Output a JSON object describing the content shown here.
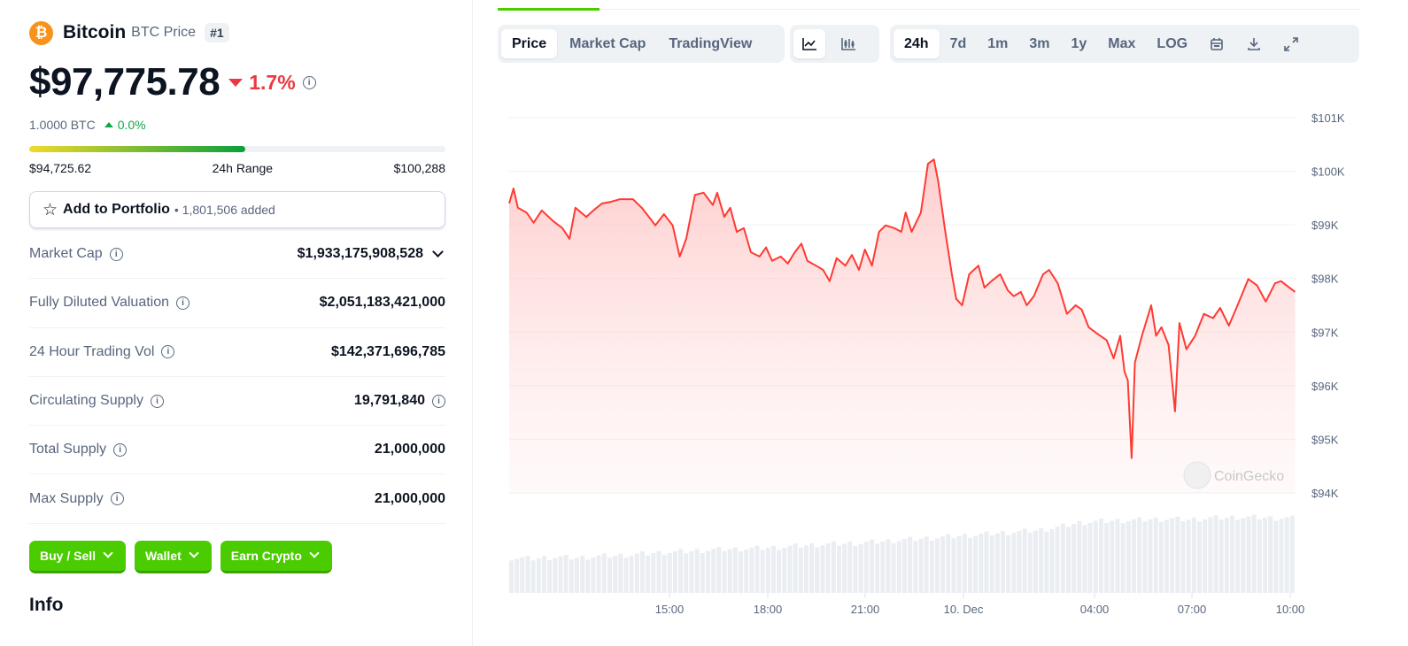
{
  "coin": {
    "name": "Bitcoin",
    "symbol_label": "BTC Price",
    "rank": "#1",
    "logo": "bitcoin-logo",
    "price": "$97,775.78",
    "change_24h": "1.7%",
    "btc_price": "1.0000 BTC",
    "btc_change": "0.0%"
  },
  "range": {
    "low": "$94,725.62",
    "label": "24h Range",
    "high": "$100,288",
    "position_pct": 52
  },
  "portfolio": {
    "label": "Add to Portfolio",
    "count": "1,801,506 added"
  },
  "stats": [
    {
      "label": "Market Cap",
      "value": "$1,933,175,908,528"
    },
    {
      "label": "Fully Diluted Valuation",
      "value": "$2,051,183,421,000"
    },
    {
      "label": "24 Hour Trading Vol",
      "value": "$142,371,696,785"
    },
    {
      "label": "Circulating Supply",
      "value": "19,791,840"
    },
    {
      "label": "Total Supply",
      "value": "21,000,000"
    },
    {
      "label": "Max Supply",
      "value": "21,000,000"
    }
  ],
  "actions": [
    "Buy / Sell",
    "Wallet",
    "Earn Crypto"
  ],
  "info_heading": "Info",
  "chart_tabs": [
    "Price",
    "Market Cap",
    "TradingView"
  ],
  "active_chart_tab": "Price",
  "chart_styles": [
    "line-chart-icon",
    "candlestick-icon"
  ],
  "ranges": [
    "24h",
    "7d",
    "1m",
    "3m",
    "1y",
    "Max",
    "LOG"
  ],
  "active_range": "24h",
  "tool_icons": [
    "calendar-icon",
    "download-icon",
    "fullscreen-icon"
  ],
  "colors": {
    "line": "#ff3a33",
    "brand_green": "#4bcc00",
    "down": "#ea3943",
    "up": "#0fa848"
  },
  "watermark": "CoinGecko",
  "chart_data": {
    "type": "area",
    "y_ticks": [
      "$101K",
      "$100K",
      "$99K",
      "$98K",
      "$97K",
      "$96K",
      "$95K",
      "$94K"
    ],
    "ylim": [
      94000,
      101000
    ],
    "x_ticks": [
      "15:00",
      "18:00",
      "21:00",
      "10. Dec",
      "04:00",
      "07:00",
      "10:00"
    ],
    "grid": true,
    "series": [
      {
        "points": [
          [
            "9 10:04",
            99400
          ],
          [
            "9 10:12",
            99680
          ],
          [
            "9 10:20",
            99320
          ],
          [
            "9 10:36",
            99230
          ],
          [
            "9 10:49",
            99040
          ],
          [
            "9 11:04",
            99270
          ],
          [
            "9 11:25",
            99070
          ],
          [
            "9 11:42",
            98940
          ],
          [
            "9 11:55",
            98740
          ],
          [
            "9 12:06",
            99320
          ],
          [
            "9 12:26",
            99150
          ],
          [
            "9 12:39",
            99270
          ],
          [
            "9 12:55",
            99400
          ],
          [
            "9 13:11",
            99430
          ],
          [
            "9 13:28",
            99480
          ],
          [
            "9 13:52",
            99480
          ],
          [
            "9 14:08",
            99320
          ],
          [
            "9 14:25",
            99100
          ],
          [
            "9 14:33",
            98990
          ],
          [
            "9 14:49",
            99200
          ],
          [
            "9 15:05",
            98990
          ],
          [
            "9 15:18",
            98410
          ],
          [
            "9 15:30",
            98740
          ],
          [
            "9 15:46",
            99560
          ],
          [
            "9 16:02",
            99600
          ],
          [
            "9 16:19",
            99370
          ],
          [
            "9 16:27",
            99600
          ],
          [
            "9 16:40",
            99150
          ],
          [
            "9 16:51",
            99320
          ],
          [
            "9 17:03",
            98870
          ],
          [
            "9 17:16",
            98940
          ],
          [
            "9 17:29",
            98490
          ],
          [
            "9 17:45",
            98410
          ],
          [
            "9 17:57",
            98580
          ],
          [
            "9 18:08",
            98330
          ],
          [
            "9 18:24",
            98410
          ],
          [
            "9 18:37",
            98280
          ],
          [
            "9 18:50",
            98490
          ],
          [
            "9 19:02",
            98650
          ],
          [
            "9 19:13",
            98330
          ],
          [
            "9 19:29",
            98240
          ],
          [
            "9 19:42",
            98160
          ],
          [
            "9 19:54",
            97950
          ],
          [
            "9 20:07",
            98380
          ],
          [
            "9 20:23",
            98240
          ],
          [
            "9 20:35",
            98440
          ],
          [
            "9 20:48",
            98160
          ],
          [
            "9 20:59",
            98540
          ],
          [
            "9 21:12",
            98240
          ],
          [
            "9 21:25",
            98870
          ],
          [
            "9 21:37",
            98990
          ],
          [
            "9 21:53",
            98940
          ],
          [
            "9 22:06",
            98870
          ],
          [
            "9 22:14",
            99230
          ],
          [
            "9 22:25",
            98870
          ],
          [
            "9 22:42",
            99230
          ],
          [
            "9 22:55",
            100140
          ],
          [
            "9 23:06",
            100220
          ],
          [
            "9 23:14",
            99810
          ],
          [
            "9 23:27",
            98870
          ],
          [
            "9 23:39",
            98080
          ],
          [
            "9 23:47",
            97620
          ],
          [
            "9 23:58",
            97500
          ],
          [
            "10 00:11",
            98080
          ],
          [
            "10 00:28",
            98240
          ],
          [
            "10 00:39",
            97830
          ],
          [
            "10 00:52",
            97950
          ],
          [
            "10 01:08",
            98080
          ],
          [
            "10 01:22",
            97780
          ],
          [
            "10 01:33",
            97670
          ],
          [
            "10 01:46",
            97750
          ],
          [
            "10 01:57",
            97500
          ],
          [
            "10 02:10",
            97670
          ],
          [
            "10 02:27",
            98080
          ],
          [
            "10 02:38",
            98160
          ],
          [
            "10 02:54",
            97910
          ],
          [
            "10 03:11",
            97340
          ],
          [
            "10 03:27",
            97500
          ],
          [
            "10 03:38",
            97420
          ],
          [
            "10 03:51",
            97090
          ],
          [
            "10 04:08",
            96960
          ],
          [
            "10 04:24",
            96850
          ],
          [
            "10 04:37",
            96510
          ],
          [
            "10 04:49",
            96930
          ],
          [
            "10 04:57",
            96260
          ],
          [
            "10 05:03",
            96100
          ],
          [
            "10 05:10",
            94650
          ],
          [
            "10 05:16",
            96430
          ],
          [
            "10 05:29",
            96930
          ],
          [
            "10 05:46",
            97500
          ],
          [
            "10 05:55",
            96930
          ],
          [
            "10 06:05",
            97090
          ],
          [
            "10 06:18",
            96760
          ],
          [
            "10 06:30",
            95520
          ],
          [
            "10 06:38",
            97170
          ],
          [
            "10 06:51",
            96680
          ],
          [
            "10 07:07",
            96930
          ],
          [
            "10 07:23",
            97340
          ],
          [
            "10 07:40",
            97260
          ],
          [
            "10 07:53",
            97450
          ],
          [
            "10 08:09",
            97120
          ],
          [
            "10 08:25",
            97500
          ],
          [
            "10 08:45",
            97990
          ],
          [
            "10 09:01",
            97870
          ],
          [
            "10 09:17",
            97570
          ],
          [
            "10 09:34",
            97910
          ],
          [
            "10 09:45",
            97950
          ],
          [
            "10 10:11",
            97750
          ]
        ]
      }
    ],
    "volume_relative": [
      45,
      44,
      46,
      45,
      47,
      48,
      50,
      52,
      53,
      55,
      56,
      57,
      58,
      60,
      62,
      63,
      64,
      66,
      68,
      70,
      72,
      74,
      76,
      78,
      80,
      84,
      90,
      92,
      93,
      94,
      95,
      94,
      96,
      97,
      97,
      96
    ]
  }
}
